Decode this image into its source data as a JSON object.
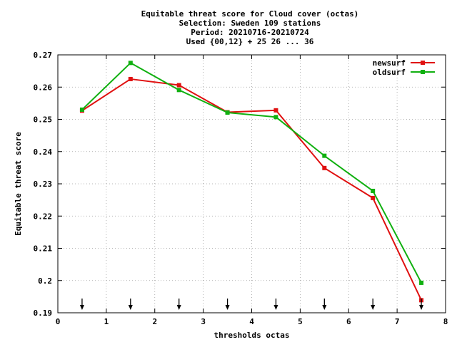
{
  "title": {
    "lines": [
      "Equitable threat score  for Cloud cover (octas)",
      "Selection: Sweden    109 stations",
      "Period: 20210716-20210724",
      "Used {00,12} + 25 26 ... 36"
    ]
  },
  "chart_data": {
    "type": "line",
    "xlabel": "thresholds octas",
    "ylabel": "Equitable threat score",
    "xlim": [
      0,
      8
    ],
    "ylim": [
      0.19,
      0.27
    ],
    "xticks": [
      "0",
      "1",
      "2",
      "3",
      "4",
      "5",
      "6",
      "7",
      "8"
    ],
    "yticks": [
      "0.19",
      "0.2",
      "0.21",
      "0.22",
      "0.23",
      "0.24",
      "0.25",
      "0.26",
      "0.27"
    ],
    "grid": true,
    "legend_position": "top-right",
    "x": [
      0.5,
      1.5,
      2.5,
      3.5,
      4.5,
      5.5,
      6.5,
      7.5
    ],
    "series": [
      {
        "name": "newsurf",
        "color": "#e01010",
        "values": [
          0.2527,
          0.2625,
          0.2606,
          0.2522,
          0.2528,
          0.2349,
          0.2256,
          0.1939
        ]
      },
      {
        "name": "oldsurf",
        "color": "#10b010",
        "values": [
          0.253,
          0.2675,
          0.2591,
          0.2521,
          0.2507,
          0.2387,
          0.2278,
          0.1993
        ]
      }
    ],
    "markers": {
      "type": "down-arrow",
      "x": [
        0.5,
        1.5,
        2.5,
        3.5,
        4.5,
        5.5,
        6.5,
        7.5
      ]
    }
  }
}
